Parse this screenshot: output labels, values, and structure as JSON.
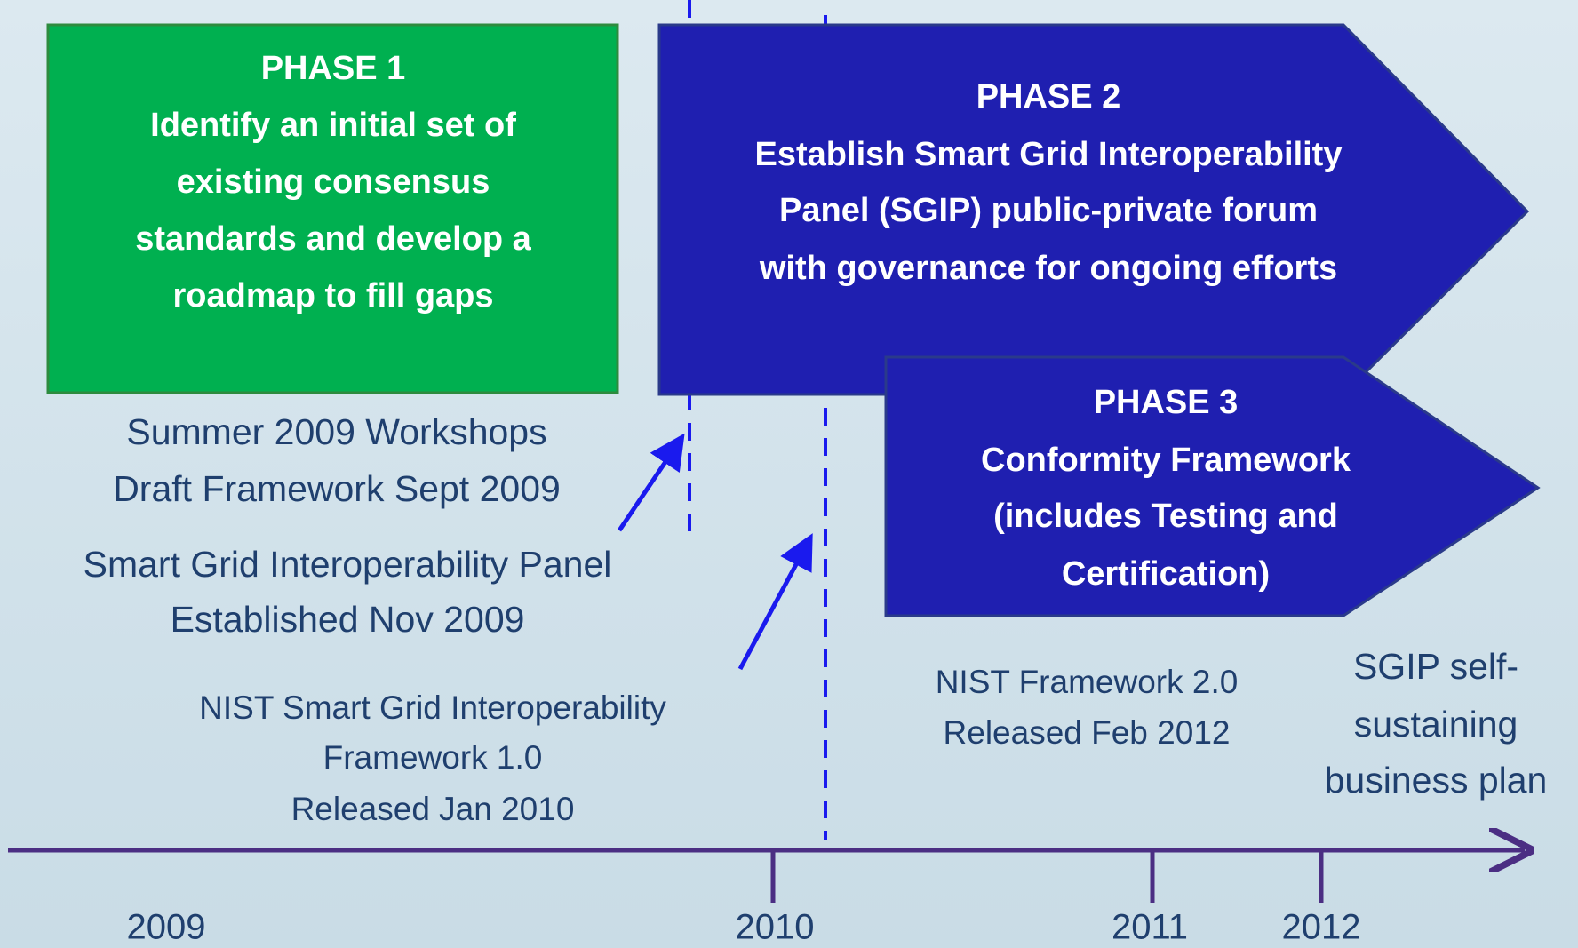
{
  "phases": [
    {
      "lines": [
        "PHASE 1",
        "Identify an initial set of",
        "existing consensus",
        "standards and develop a",
        "roadmap to fill gaps"
      ]
    },
    {
      "lines": [
        "PHASE 2",
        "Establish Smart Grid Interoperability",
        "Panel (SGIP) public-private forum",
        "with governance for ongoing efforts"
      ]
    },
    {
      "lines": [
        "PHASE 3",
        "Conformity Framework",
        "(includes Testing and",
        "Certification)"
      ]
    }
  ],
  "notes": [
    {
      "lines": [
        "Summer 2009 Workshops",
        "Draft Framework Sept 2009"
      ]
    },
    {
      "lines": [
        "Smart Grid Interoperability Panel",
        "Established Nov 2009"
      ]
    },
    {
      "lines": [
        "NIST Smart Grid Interoperability",
        "Framework 1.0",
        "Released Jan 2010"
      ]
    },
    {
      "lines": [
        "NIST Framework 2.0",
        "Released Feb 2012"
      ]
    },
    {
      "lines": [
        "SGIP self-",
        "sustaining",
        "business plan"
      ]
    }
  ],
  "years": [
    "2009",
    "2010",
    "2011",
    "2012"
  ]
}
